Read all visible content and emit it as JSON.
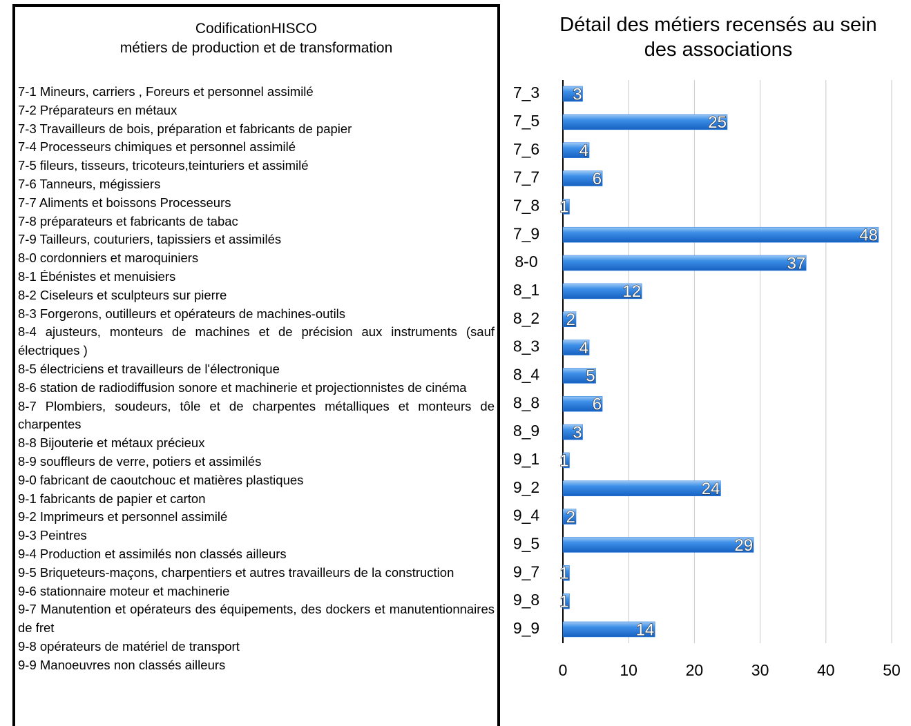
{
  "legend_box": {
    "title": [
      "CodificationHISCO",
      "métiers de production et de transformation"
    ],
    "items": [
      "7-1 Mineurs, carriers , Foreurs et personnel assimilé",
      "7-2 Préparateurs en métaux",
      "7-3 Travailleurs de bois, préparation et fabricants de papier",
      "7-4 Processeurs chimiques et personnel assimilé",
      "7-5 fileurs, tisseurs, tricoteurs,teinturiers et assimilé",
      "7-6 Tanneurs, mégissiers",
      "7-7 Aliments et boissons Processeurs",
      "7-8 préparateurs et fabricants de tabac",
      "7-9 Tailleurs, couturiers, tapissiers et assimilés",
      "8-0 cordonniers et maroquiniers",
      "8-1 Ébénistes et menuisiers",
      "8-2 Ciseleurs et sculpteurs sur pierre",
      "8-3 Forgerons, outilleurs et opérateurs de machines-outils",
      "8-4 ajusteurs, monteurs de machines et de précision aux instruments (sauf électriques )",
      "8-5 électriciens et travailleurs de l'électronique",
      "8-6 station de radiodiffusion sonore et machinerie et projectionnistes de cinéma",
      "8-7 Plombiers, soudeurs, tôle et de charpentes métalliques et monteurs de charpentes",
      "8-8 Bijouterie et métaux précieux",
      "8-9 souffleurs de verre, potiers et assimilés",
      "9-0 fabricant de caoutchouc et matières plastiques",
      "9-1 fabricants de papier et carton",
      "9-2 Imprimeurs et personnel assimilé",
      "9-3 Peintres",
      "9-4 Production et assimilés non classés ailleurs",
      "9-5 Briqueteurs-maçons, charpentiers et autres travailleurs de la construction",
      "9-6 stationnaire moteur et machinerie",
      "9-7 Manutention et opérateurs des équipements, des dockers et manutentionnaires de fret",
      "9-8 opérateurs de matériel de transport",
      "9-9 Manoeuvres non classés ailleurs"
    ]
  },
  "chart_data": {
    "type": "bar",
    "orientation": "horizontal",
    "title": "Détail des métiers recensés au sein des associations",
    "categories": [
      "7_3",
      "7_5",
      "7_6",
      "7_7",
      "7_8",
      "7_9",
      "8-0",
      "8_1",
      "8_2",
      "8_3",
      "8_4",
      "8_8",
      "8_9",
      "9_1",
      "9_2",
      "9_4",
      "9_5",
      "9_7",
      "9_8",
      "9_9"
    ],
    "values": [
      3,
      25,
      4,
      6,
      1,
      48,
      37,
      12,
      2,
      4,
      5,
      6,
      3,
      1,
      24,
      2,
      29,
      1,
      1,
      14
    ],
    "color": "#2a7de1",
    "xlim": [
      0,
      50
    ],
    "xticks": [
      0,
      10,
      20,
      30,
      40,
      50
    ],
    "grid": true
  }
}
